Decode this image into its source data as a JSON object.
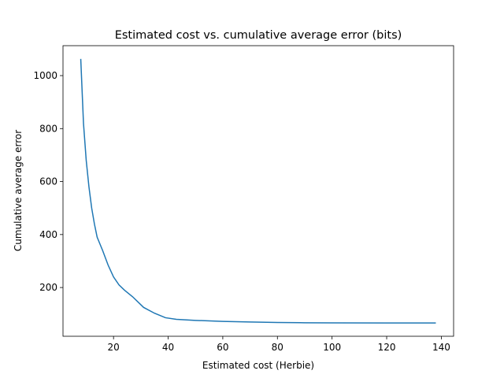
{
  "chart_data": {
    "type": "line",
    "title": "Estimated cost vs. cumulative average error (bits)",
    "x_label": "Estimated cost (Herbie)",
    "y_label": "Cumulative average error",
    "x": [
      8,
      9,
      10,
      11,
      12,
      13,
      14,
      16,
      18,
      20,
      22,
      24,
      27,
      31,
      35,
      39,
      43,
      50,
      60,
      70,
      80,
      90,
      100,
      120,
      138
    ],
    "series": [
      {
        "name": "error",
        "color": "#1f77b4",
        "values": [
          1063,
          820,
          680,
          580,
          500,
          440,
          390,
          340,
          285,
          240,
          210,
          190,
          165,
          125,
          103,
          86,
          80,
          76,
          72,
          70,
          68,
          67,
          66.5,
          66,
          66
        ]
      }
    ],
    "xlim": [
      1.5,
      144.5
    ],
    "xticks": [
      20,
      40,
      60,
      80,
      100,
      120,
      140
    ],
    "ylim": [
      16,
      1113
    ],
    "yticks": [
      200,
      400,
      600,
      800,
      1000
    ],
    "grid": false
  }
}
